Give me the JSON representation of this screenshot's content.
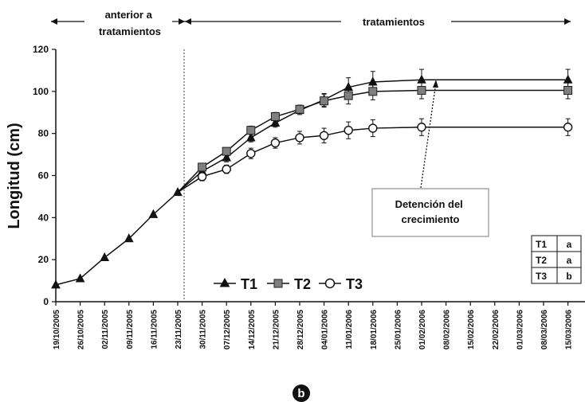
{
  "chart_data": {
    "type": "line",
    "ylabel": "Longitud (cm)",
    "ylim": [
      0,
      120
    ],
    "yticks": [
      0,
      20,
      40,
      60,
      80,
      100,
      120
    ],
    "x_dates": [
      "19/10/2005",
      "26/10/2005",
      "02/11/2005",
      "09/11/2005",
      "16/11/2005",
      "23/11/2005",
      "30/11/2005",
      "07/12/2005",
      "14/12/2005",
      "21/12/2005",
      "28/12/2005",
      "04/01/2006",
      "11/01/2006",
      "18/01/2006",
      "25/01/2006",
      "01/02/2006",
      "08/02/2006",
      "15/02/2006",
      "22/02/2006",
      "01/03/2006",
      "08/03/2006",
      "15/03/2006"
    ],
    "phases": [
      {
        "label_lines": [
          "anterior a",
          "tratamientos"
        ]
      },
      {
        "label_lines": [
          "tratamientos"
        ]
      }
    ],
    "pre_treatment": {
      "x": [
        "19/10/2005",
        "26/10/2005",
        "02/11/2005",
        "09/11/2005",
        "16/11/2005",
        "23/11/2005"
      ],
      "y": [
        8,
        11,
        21,
        30,
        41.5,
        52
      ]
    },
    "series": [
      {
        "name": "T1",
        "marker": "triangle",
        "color": "#111111",
        "x": [
          "23/11/2005",
          "30/11/2005",
          "07/12/2005",
          "14/12/2005",
          "21/12/2005",
          "28/12/2005",
          "04/01/2006",
          "11/01/2006",
          "18/01/2006",
          "01/02/2006",
          "15/03/2006"
        ],
        "y": [
          52,
          62,
          68.5,
          78,
          85,
          91,
          96,
          102,
          104.5,
          105.5,
          105.5
        ],
        "err": [
          0,
          1.5,
          2,
          2,
          2,
          2,
          3,
          4.5,
          5,
          5,
          5
        ]
      },
      {
        "name": "T2",
        "marker": "square",
        "color": "#7f7f7f",
        "x": [
          "23/11/2005",
          "30/11/2005",
          "07/12/2005",
          "14/12/2005",
          "21/12/2005",
          "28/12/2005",
          "04/01/2006",
          "11/01/2006",
          "18/01/2006",
          "01/02/2006",
          "15/03/2006"
        ],
        "y": [
          52,
          64,
          71.5,
          81.5,
          88,
          91.5,
          95.5,
          98,
          100,
          100.5,
          100.5
        ],
        "err": [
          0,
          1.5,
          1.5,
          2,
          2,
          2,
          3,
          4,
          4,
          4,
          4
        ]
      },
      {
        "name": "T3",
        "marker": "circle",
        "color": "#ffffff",
        "x": [
          "23/11/2005",
          "30/11/2005",
          "07/12/2005",
          "14/12/2005",
          "21/12/2005",
          "28/12/2005",
          "04/01/2006",
          "11/01/2006",
          "18/01/2006",
          "01/02/2006",
          "15/03/2006"
        ],
        "y": [
          52,
          59.5,
          63,
          70.5,
          75.5,
          78,
          79,
          81.5,
          82.5,
          83,
          83
        ],
        "err": [
          0,
          2,
          2,
          2.5,
          2.5,
          3,
          3.5,
          4,
          4,
          4,
          4
        ]
      }
    ],
    "annotation": {
      "lines": [
        "Detención del",
        "crecimiento"
      ],
      "points_to": "01/02/2006"
    },
    "significance": [
      {
        "treatment": "T1",
        "group": "a"
      },
      {
        "treatment": "T2",
        "group": "a"
      },
      {
        "treatment": "T3",
        "group": "b"
      }
    ],
    "legend_position": "bottom-center",
    "grid": false,
    "panel_label": "b"
  }
}
